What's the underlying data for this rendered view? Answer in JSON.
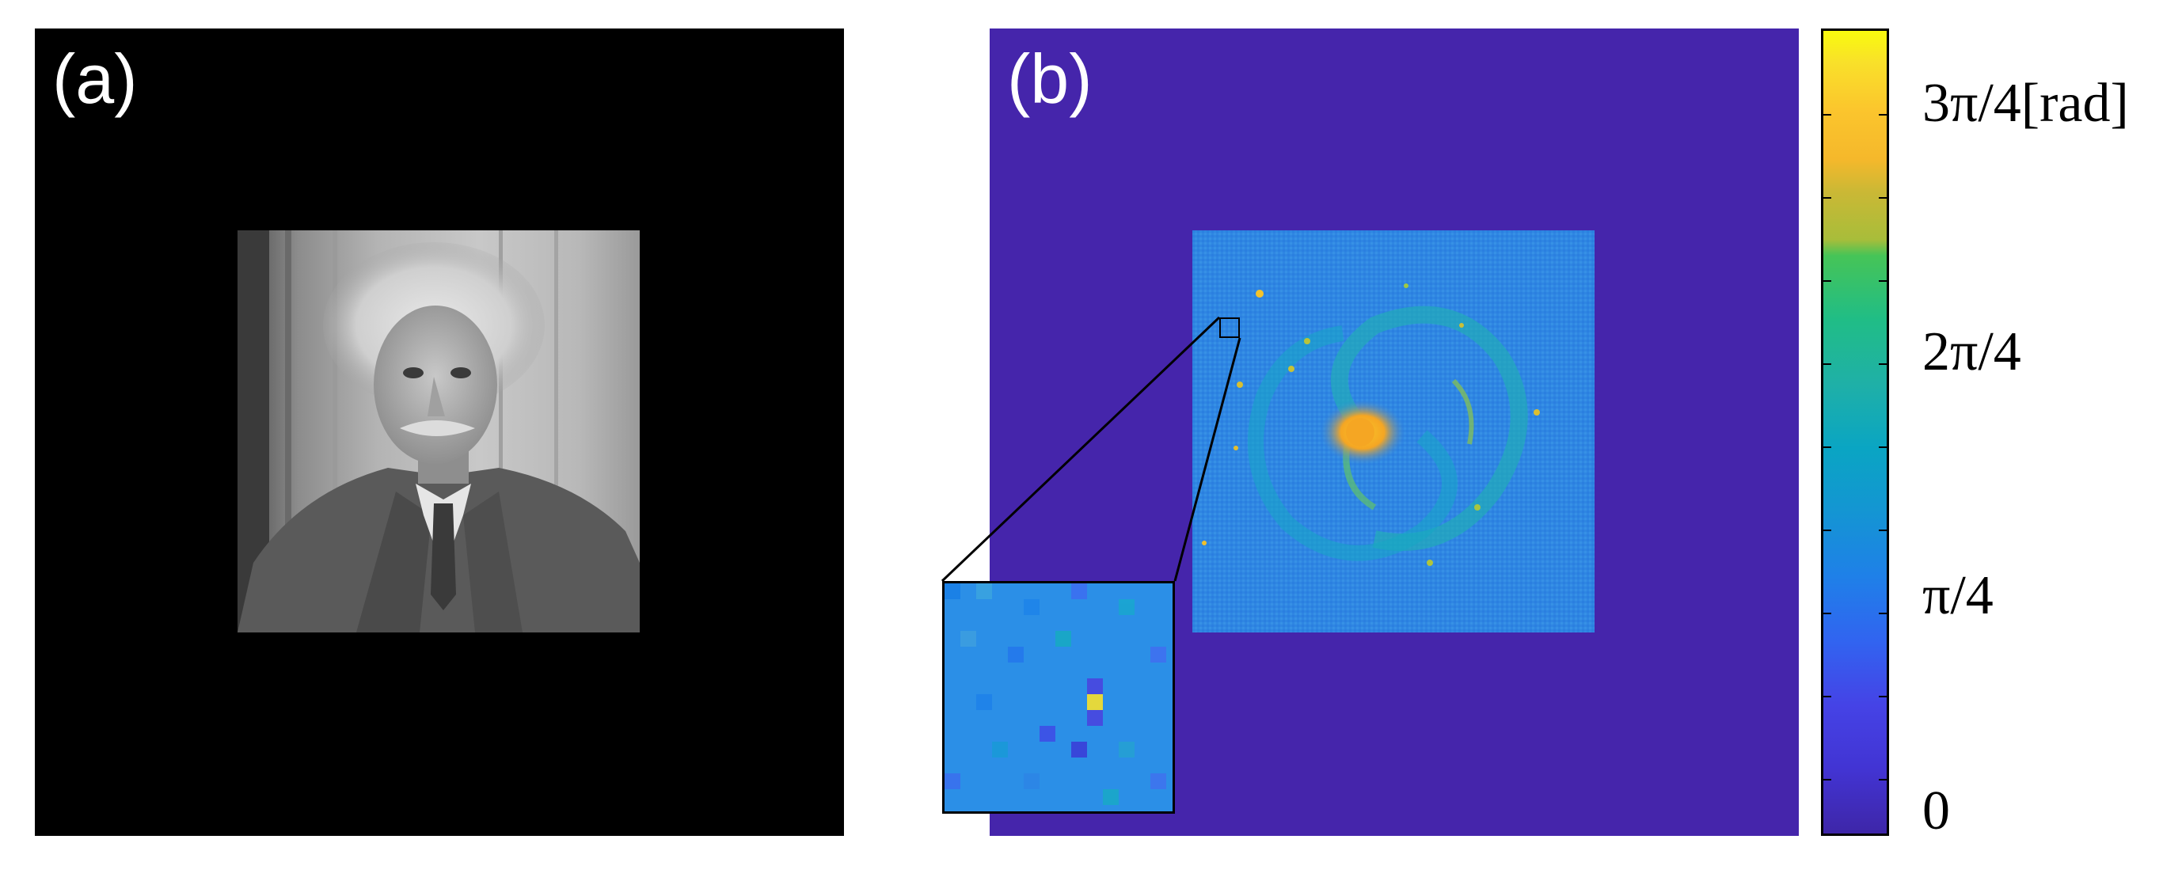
{
  "panel_a": {
    "label": "(a)",
    "image": "grayscale portrait photograph on black background"
  },
  "panel_b": {
    "label": "(b)",
    "image": "spiral galaxy phase map on uniform background"
  },
  "colorbar": {
    "tick_labels": [
      "3π/4[rad]",
      "2π/4",
      "π/4",
      "0"
    ],
    "colormap": [
      "#3e26a8",
      "#2f86e2",
      "#20bd86",
      "#f5b82b",
      "#f9fb0e"
    ]
  },
  "colors": {
    "panel_a_bg": "#000000",
    "panel_b_bg": "#4525ab",
    "galaxy_base": "#2f86e2",
    "galaxy_core": "#f5a623"
  }
}
